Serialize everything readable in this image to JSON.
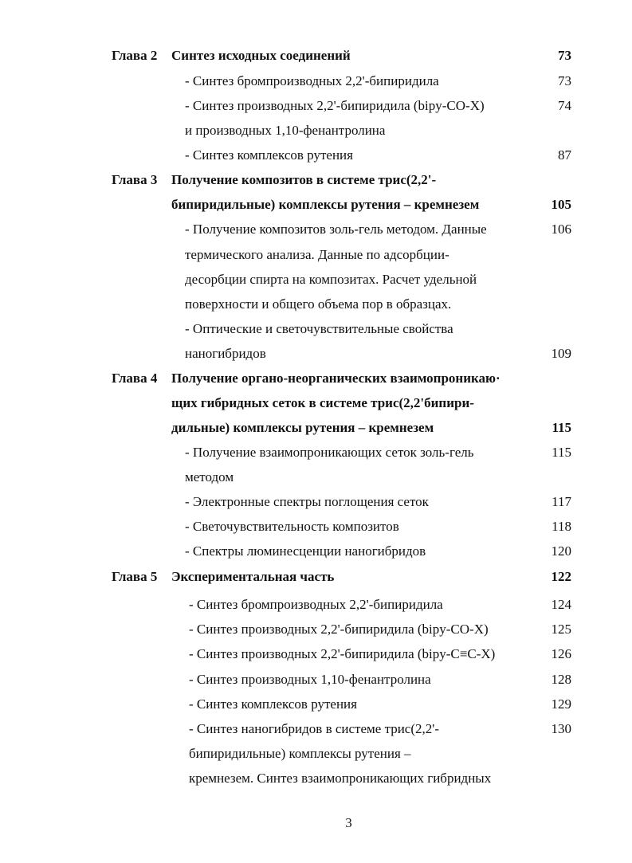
{
  "toc": {
    "ch2": {
      "label": "Глава 2",
      "title": "Синтез исходных соединений",
      "page": "73",
      "items": [
        {
          "lines": [
            "- Синтез бромпроизводных 2,2'-бипиридила"
          ],
          "page": "73"
        },
        {
          "lines": [
            "- Синтез производных 2,2'-бипиридила (bipy-CO-X)",
            "и производных 1,10-фенантролина"
          ],
          "page": "74"
        },
        {
          "lines": [
            "- Синтез комплексов рутения"
          ],
          "page": "87"
        }
      ]
    },
    "ch3": {
      "label": "Глава 3",
      "title_lines": [
        "Получение композитов в системе трис(2,2'-",
        "бипиридильные) комплексы рутения – кремнезем"
      ],
      "page": "105",
      "items": [
        {
          "lines": [
            "- Получение композитов золь-гель методом. Данные",
            "термического анализа. Данные по адсорбции-",
            "десорбции спирта на композитах. Расчет удельной",
            "поверхности и общего объема пор в образцах."
          ],
          "page": "106"
        },
        {
          "lines": [
            "- Оптические и светочувствительные свойства",
            "наногибридов"
          ],
          "page": "109"
        }
      ]
    },
    "ch4": {
      "label": "Глава 4",
      "title_lines": [
        "Получение органо-неорганических взаимопроникаю·",
        "щих гибридных сеток в системе трис(2,2'бипири-",
        "дильные) комплексы рутения – кремнезем"
      ],
      "page": "115",
      "items": [
        {
          "lines": [
            "- Получение взаимопроникающих сеток золь-гель",
            "методом"
          ],
          "page": "115"
        },
        {
          "lines": [
            "-  Электронные спектры поглощения сеток"
          ],
          "page": "117"
        },
        {
          "lines": [
            "- Светочувствительность композитов"
          ],
          "page": "118"
        },
        {
          "lines": [
            "- Спектры люминесценции наногибридов"
          ],
          "page": "120"
        }
      ]
    },
    "ch5": {
      "label": "Глава 5",
      "title": "Экспериментальная часть",
      "page": "122",
      "items": [
        {
          "lines": [
            "- Синтез бромпроизводных 2,2'-бипиридила"
          ],
          "page": "124"
        },
        {
          "lines": [
            "- Синтез производных 2,2'-бипиридила (bipy-CO-X)"
          ],
          "page": "125"
        },
        {
          "lines": [
            "- Синтез производных 2,2'-бипиридила (bipy-C≡C-X)"
          ],
          "page": "126"
        },
        {
          "lines": [
            "- Синтез производных 1,10-фенантролина"
          ],
          "page": "128"
        },
        {
          "lines": [
            "- Синтез комплексов рутения"
          ],
          "page": "129"
        },
        {
          "lines": [
            "- Синтез наногибридов в системе трис(2,2'-",
            "бипиридильные) комплексы рутения –",
            "кремнезем. Синтез взаимопроникающих гибридных"
          ],
          "page": "130"
        }
      ]
    }
  },
  "page_number": "3"
}
